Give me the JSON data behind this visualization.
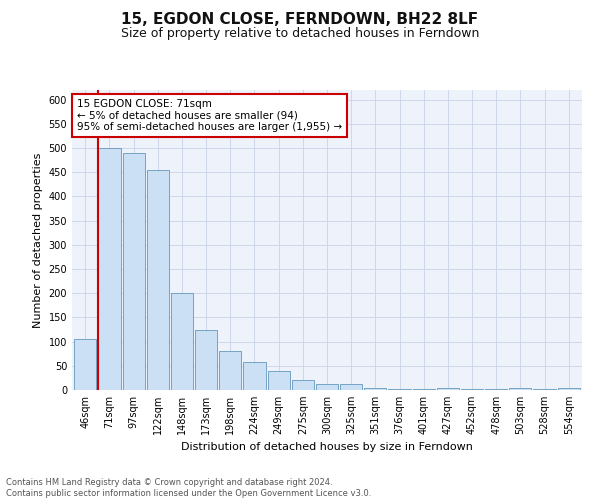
{
  "title": "15, EGDON CLOSE, FERNDOWN, BH22 8LF",
  "subtitle": "Size of property relative to detached houses in Ferndown",
  "xlabel": "Distribution of detached houses by size in Ferndown",
  "ylabel": "Number of detached properties",
  "categories": [
    "46sqm",
    "71sqm",
    "97sqm",
    "122sqm",
    "148sqm",
    "173sqm",
    "198sqm",
    "224sqm",
    "249sqm",
    "275sqm",
    "300sqm",
    "325sqm",
    "351sqm",
    "376sqm",
    "401sqm",
    "427sqm",
    "452sqm",
    "478sqm",
    "503sqm",
    "528sqm",
    "554sqm"
  ],
  "values": [
    105,
    500,
    490,
    455,
    200,
    125,
    80,
    57,
    40,
    20,
    12,
    12,
    5,
    2,
    2,
    5,
    2,
    2,
    5,
    2,
    5
  ],
  "bar_color": "#cce0f5",
  "bar_edge_color": "#6699bb",
  "highlight_bar_index": 1,
  "highlight_color": "#cc0000",
  "annotation_text": "15 EGDON CLOSE: 71sqm\n← 5% of detached houses are smaller (94)\n95% of semi-detached houses are larger (1,955) →",
  "annotation_box_color": "#ffffff",
  "annotation_box_edge_color": "#cc0000",
  "ylim": [
    0,
    620
  ],
  "yticks": [
    0,
    50,
    100,
    150,
    200,
    250,
    300,
    350,
    400,
    450,
    500,
    550,
    600
  ],
  "footer": "Contains HM Land Registry data © Crown copyright and database right 2024.\nContains public sector information licensed under the Open Government Licence v3.0.",
  "background_color": "#eef2fa",
  "grid_color": "#c8d4e8",
  "title_fontsize": 11,
  "subtitle_fontsize": 9,
  "tick_fontsize": 7,
  "label_fontsize": 8,
  "annotation_fontsize": 7.5
}
